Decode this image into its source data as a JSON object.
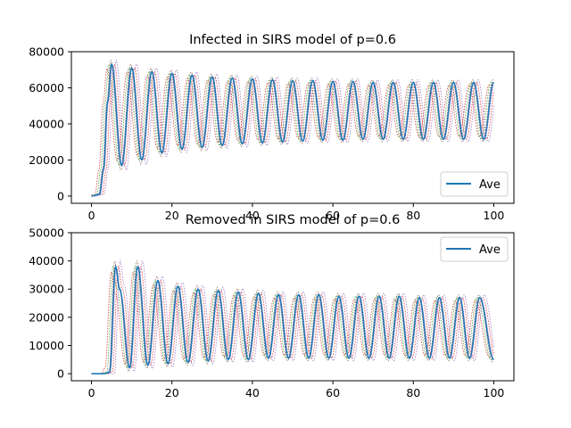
{
  "chart_data": [
    {
      "type": "line",
      "title": "Infected in SIRS model of p=0.6",
      "xlabel": "",
      "ylabel": "",
      "xlim": [
        -5,
        105
      ],
      "ylim": [
        -4000,
        80000
      ],
      "xticks": [
        0,
        20,
        40,
        60,
        80,
        100
      ],
      "xtick_labels": [
        "0",
        "20",
        "40",
        "60",
        "80",
        "100"
      ],
      "yticks": [
        0,
        20000,
        40000,
        60000,
        80000
      ],
      "ytick_labels": [
        "0",
        "20000",
        "40000",
        "60000",
        "80000"
      ],
      "legend": {
        "entries": [
          "Ave"
        ],
        "placement": "lower right"
      },
      "grid": false,
      "series": [
        {
          "name": "Ave",
          "color": "#1f77b4",
          "style": "solid",
          "x": [
            0,
            2,
            3,
            4,
            5,
            7.5,
            10,
            12.5,
            15,
            17.5,
            20,
            22.5,
            25,
            27.5,
            30,
            32.5,
            35,
            37.5,
            40,
            42.5,
            45,
            47.5,
            50,
            52.5,
            55,
            57.5,
            60,
            62.5,
            65,
            67.5,
            70,
            72.5,
            75,
            77.5,
            80,
            82.5,
            85,
            87.5,
            90,
            92.5,
            95,
            97.5,
            100
          ],
          "y": [
            0,
            1000,
            15000,
            52000,
            73000,
            17000,
            71000,
            20000,
            69000,
            24000,
            68000,
            26000,
            67000,
            27000,
            66000,
            28000,
            65500,
            29000,
            65000,
            29500,
            64500,
            30000,
            64000,
            30500,
            64000,
            31000,
            63500,
            31000,
            63500,
            31500,
            63000,
            31500,
            63000,
            31500,
            63000,
            31500,
            63000,
            31500,
            63000,
            31500,
            63000,
            31500,
            63000
          ]
        }
      ],
      "runs": {
        "count": 6,
        "style": "dotted",
        "colors": [
          "#d62728",
          "#2ca02c",
          "#8c564b",
          "#e377c2",
          "#d62728",
          "#9467bd"
        ]
      }
    },
    {
      "type": "line",
      "title": "Removed in SIRS model of p=0.6",
      "xlabel": "",
      "ylabel": "",
      "xlim": [
        -5,
        105
      ],
      "ylim": [
        -2500,
        50000
      ],
      "xticks": [
        0,
        20,
        40,
        60,
        80,
        100
      ],
      "xtick_labels": [
        "0",
        "20",
        "40",
        "60",
        "80",
        "100"
      ],
      "yticks": [
        0,
        10000,
        20000,
        30000,
        40000,
        50000
      ],
      "ytick_labels": [
        "0",
        "10000",
        "20000",
        "30000",
        "40000",
        "50000"
      ],
      "legend": {
        "entries": [
          "Ave"
        ],
        "placement": "upper right"
      },
      "grid": false,
      "series": [
        {
          "name": "Ave",
          "color": "#1f77b4",
          "style": "solid",
          "x": [
            0,
            3,
            4.5,
            6,
            7,
            9.5,
            11.5,
            14,
            16.5,
            19,
            21.5,
            24,
            26.5,
            29,
            31.5,
            34,
            36.5,
            39,
            41.5,
            44,
            46.5,
            49,
            51.5,
            54,
            56.5,
            59,
            61.5,
            64,
            66.5,
            69,
            71.5,
            74,
            76.5,
            79,
            81.5,
            84,
            86.5,
            89,
            91.5,
            94,
            96.5,
            100
          ],
          "y": [
            0,
            0,
            500,
            38000,
            30000,
            2000,
            38000,
            3000,
            33000,
            3500,
            31000,
            4000,
            30000,
            4500,
            29500,
            5000,
            29000,
            5000,
            28500,
            5500,
            28000,
            5500,
            28000,
            5500,
            28000,
            5500,
            27500,
            5500,
            27500,
            5500,
            27500,
            5500,
            27500,
            5500,
            27000,
            5500,
            27000,
            5500,
            27000,
            5500,
            27000,
            5000
          ]
        }
      ],
      "runs": {
        "count": 6,
        "style": "dotted",
        "colors": [
          "#d62728",
          "#2ca02c",
          "#8c564b",
          "#e377c2",
          "#d62728",
          "#9467bd"
        ]
      }
    }
  ]
}
